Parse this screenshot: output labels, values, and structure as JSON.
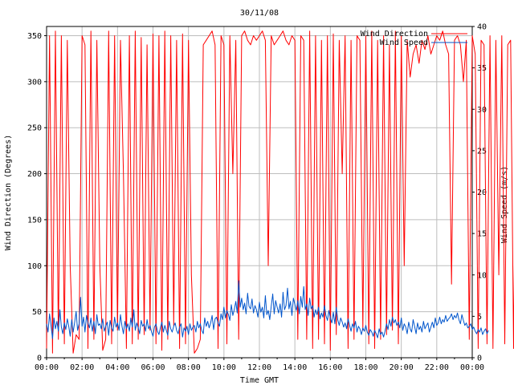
{
  "chart_data": {
    "type": "line",
    "title": "30/11/08",
    "xlabel": "Time GMT",
    "ylabel_left": "Wind Direction (Degrees)",
    "ylabel_right": "Wind Speed (m/s)",
    "x_range_hours": [
      0,
      24
    ],
    "x_ticks": [
      "00:00",
      "02:00",
      "04:00",
      "06:00",
      "08:00",
      "10:00",
      "12:00",
      "14:00",
      "16:00",
      "18:00",
      "20:00",
      "22:00",
      "00:00"
    ],
    "ylim_left": [
      0,
      360
    ],
    "yticks_left": [
      0,
      50,
      100,
      150,
      200,
      250,
      300,
      350
    ],
    "ylim_right": [
      0,
      40
    ],
    "yticks_right": [
      0,
      5,
      10,
      15,
      20,
      25,
      30,
      35,
      40
    ],
    "grid": true,
    "legend_position": "top-right",
    "series": [
      {
        "name": "Wind Direction",
        "axis": "left",
        "color": "#ff0000",
        "sample_minutes": 10,
        "values": [
          10,
          350,
          5,
          355,
          20,
          350,
          15,
          345,
          100,
          5,
          25,
          20,
          350,
          340,
          10,
          355,
          20,
          345,
          100,
          8,
          20,
          355,
          15,
          350,
          30,
          345,
          200,
          10,
          350,
          15,
          355,
          20,
          348,
          25,
          340,
          30,
          352,
          15,
          350,
          8,
          355,
          20,
          350,
          35,
          345,
          10,
          352,
          15,
          345,
          90,
          5,
          10,
          20,
          340,
          345,
          350,
          355,
          340,
          10,
          350,
          340,
          15,
          350,
          200,
          345,
          20,
          350,
          355,
          345,
          340,
          350,
          345,
          350,
          355,
          345,
          100,
          350,
          340,
          345,
          350,
          355,
          345,
          340,
          350,
          345,
          20,
          350,
          345,
          20,
          355,
          10,
          350,
          20,
          345,
          15,
          350,
          8,
          352,
          25,
          345,
          200,
          350,
          10,
          345,
          20,
          350,
          345,
          30,
          350,
          15,
          355,
          10,
          345,
          20,
          350,
          25,
          340,
          30,
          355,
          15,
          350,
          100,
          345,
          305,
          330,
          340,
          320,
          345,
          335,
          350,
          330,
          340,
          350,
          345,
          355,
          340,
          330,
          80,
          345,
          350,
          340,
          300,
          345,
          20,
          350,
          330,
          10,
          345,
          340,
          15,
          350,
          10,
          345,
          90,
          350,
          15,
          340,
          345,
          10,
          350,
          340,
          20,
          345,
          350,
          355,
          20,
          345,
          10,
          340,
          90,
          350,
          340,
          355
        ]
      },
      {
        "name": "Wind Speed",
        "axis": "right",
        "color": "#0055cc",
        "sample_minutes": 5,
        "values": [
          4.1,
          3.1,
          5.3,
          3.9,
          2.3,
          4.8,
          3.5,
          4.4,
          3.2,
          5.8,
          3.7,
          2.9,
          4.2,
          3.4,
          4.7,
          3.8,
          2.6,
          4.6,
          3.1,
          4.3,
          5.6,
          3.3,
          4.1,
          7.3,
          3.8,
          4.9,
          3.1,
          5.1,
          4.2,
          3.6,
          4.8,
          3.2,
          4.4,
          2.9,
          5.2,
          3.9,
          4.1,
          3.5,
          4.7,
          3.2,
          3.8,
          4.3,
          2.7,
          4.5,
          3.6,
          3.2,
          4.9,
          3.7,
          4.2,
          3.3,
          5.2,
          3.8,
          2.9,
          4.4,
          3.5,
          4.1,
          3.2,
          4.8,
          3.7,
          5.8,
          3.3,
          4.2,
          3.6,
          2.9,
          4.5,
          3.8,
          4.1,
          3.2,
          4.6,
          3.5,
          3.9,
          3.1,
          2.6,
          3.7,
          4.1,
          3.2,
          2.8,
          3.6,
          4.3,
          3.1,
          3.9,
          3.3,
          2.7,
          4.4,
          3.5,
          3.1,
          3.8,
          4.2,
          3.3,
          2.9,
          3.7,
          4.1,
          2.5,
          3.6,
          3.2,
          3.8,
          2.8,
          4.1,
          3.3,
          3.7,
          3.9,
          3.1,
          4.4,
          3.6,
          4.1,
          3.3,
          2.9,
          4.8,
          3.8,
          4.4,
          3.6,
          4.2,
          5.1,
          3.4,
          4.7,
          4.9,
          4.2,
          3.8,
          5.3,
          4.6,
          6.1,
          4.8,
          5.7,
          5.2,
          4.5,
          6.4,
          5.1,
          5.8,
          6.8,
          5.4,
          9.3,
          6.1,
          7.2,
          5.8,
          6.6,
          5.3,
          7.8,
          6.2,
          5.9,
          7.1,
          5.4,
          6.3,
          5.8,
          4.9,
          6.7,
          5.5,
          6.1,
          4.8,
          7.5,
          5.2,
          5.7,
          4.6,
          6.2,
          7.7,
          5.3,
          6.9,
          6.1,
          5.4,
          6.5,
          4.9,
          7.9,
          5.8,
          6.3,
          8.4,
          5.9,
          6.8,
          5.1,
          7.2,
          6.4,
          5.7,
          6.9,
          5.3,
          7.4,
          6.1,
          8.6,
          5.8,
          6.5,
          5.1,
          7.2,
          5.9,
          6.3,
          4.9,
          5.8,
          5.2,
          6.1,
          4.7,
          5.4,
          4.9,
          6.3,
          5.1,
          4.5,
          5.7,
          4.8,
          4.2,
          5.5,
          4.1,
          6.1,
          4.6,
          3.9,
          4.8,
          4.3,
          3.7,
          4.2,
          3.5,
          4.7,
          3.9,
          3.2,
          4.1,
          3.6,
          4.4,
          3.1,
          3.8,
          3.5,
          2.8,
          3.6,
          3.2,
          3.9,
          3.1,
          2.7,
          3.4,
          3.1,
          2.6,
          3.3,
          2.9,
          2.4,
          3.5,
          2.8,
          3.1,
          2.5,
          3.2,
          4.1,
          3.4,
          4.6,
          3.8,
          4.9,
          4.2,
          4.6,
          3.9,
          4.3,
          3.6,
          4.8,
          3.3,
          4.1,
          3.7,
          2.9,
          4.3,
          3.5,
          3.1,
          4.6,
          3.8,
          2.9,
          4.2,
          3.4,
          3.8,
          3.1,
          4.4,
          3.5,
          3.9,
          4.2,
          3.1,
          3.7,
          4.3,
          3.6,
          4.8,
          3.9,
          4.2,
          4.9,
          4.1,
          4.6,
          4.3,
          5.1,
          4.4,
          4.7,
          4.9,
          5.3,
          4.6,
          5.1,
          4.8,
          5.4,
          4.6,
          4.1,
          5.2,
          4.5,
          3.9,
          4.2,
          3.6,
          3.8,
          4.1,
          3.4,
          3.7,
          3.2,
          2.9,
          3.4,
          3.1,
          3.6,
          2.8,
          3.2,
          3.5,
          2.9,
          3.3
        ]
      }
    ]
  }
}
